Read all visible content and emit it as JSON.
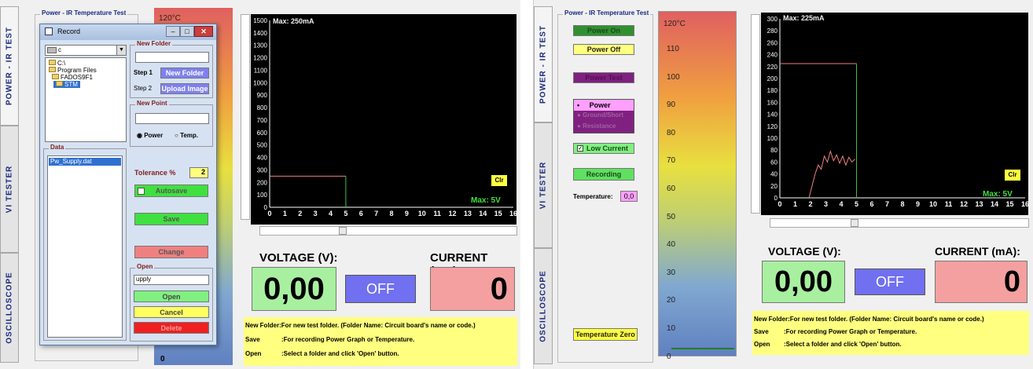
{
  "left": {
    "tabs": [
      "POWER - IR TEST",
      "VI TESTER",
      "OSCILLOSCOPE"
    ],
    "group_title": "Power - IR Temperature Test",
    "temp_top": "120°C",
    "bottom_value": "0",
    "plot": {
      "max_label": "Max: 250mA",
      "y_ticks": [
        "1500",
        "1400",
        "1300",
        "1200",
        "1100",
        "1000",
        "900",
        "800",
        "700",
        "600",
        "500",
        "400",
        "300",
        "200",
        "100",
        "0"
      ],
      "x_ticks": [
        "0",
        "1",
        "2",
        "3",
        "4",
        "5",
        "6",
        "7",
        "8",
        "9",
        "10",
        "11",
        "12",
        "13",
        "14",
        "15",
        "16"
      ],
      "clr": "Clr",
      "max_v": "Max: 5V",
      "colors": {
        "line": "#f08080",
        "marker": "#40c040"
      }
    },
    "voltage_label": "VOLTAGE (V):",
    "current_label": "CURRENT (mA):",
    "voltage_value": "0,00",
    "current_value": "0",
    "off_label": "OFF",
    "info": [
      {
        "key": "New Folder",
        "text": ":For new test folder.  (Folder Name: Circuit board's name or code.)"
      },
      {
        "key": "Save",
        "text": ":For recording Power Graph or Temperature."
      },
      {
        "key": "Open",
        "text": ":Select a folder and click 'Open' button."
      }
    ],
    "dialog": {
      "title": "Record",
      "drive": "c",
      "tree": [
        "C:\\",
        "Program Files",
        "FADOS9F1",
        "STM"
      ],
      "new_folder_title": "New Folder",
      "step1": "Step 1",
      "step2": "Step 2",
      "new_folder_btn": "New Folder",
      "upload_btn": "Upload Image",
      "new_point_title": "New Point",
      "radio_power": "Power",
      "radio_temp": "Temp.",
      "data_title": "Data",
      "data_item": "Pw_Supply.dat",
      "tolerance_label": "Tolerance %",
      "tolerance_value": "2",
      "autosave": "Autosave",
      "save": "Save",
      "change": "Change",
      "open_title": "Open",
      "open_value": "upply",
      "open_btn": "Open",
      "cancel_btn": "Cancel",
      "delete_btn": "Delete"
    }
  },
  "right": {
    "tabs": [
      "POWER - IR TEST",
      "VI TESTER",
      "OSCILLOSCOPE"
    ],
    "group_title": "Power - IR Temperature Test",
    "buttons": {
      "power_on": "Power On",
      "power_off": "Power Off",
      "power_test": "Power Test",
      "power_radio": "Power",
      "ground_radio": "Ground/Short",
      "resistance_radio": "Resistance",
      "low_current": "Low Current",
      "recording": "Recording",
      "temperature_label": "Temperature:",
      "temperature_value": "0,0",
      "temperature_zero": "Temperature Zero"
    },
    "scale": {
      "top": "120°C",
      "ticks": [
        "110",
        "100",
        "90",
        "80",
        "70",
        "60",
        "50",
        "40",
        "30",
        "20",
        "10",
        "0"
      ]
    },
    "plot": {
      "max_label": "Max: 225mA",
      "y_ticks": [
        "300",
        "280",
        "260",
        "240",
        "220",
        "200",
        "180",
        "160",
        "140",
        "120",
        "100",
        "80",
        "60",
        "40",
        "20",
        "0"
      ],
      "x_ticks": [
        "0",
        "1",
        "2",
        "3",
        "4",
        "5",
        "6",
        "7",
        "8",
        "9",
        "10",
        "11",
        "12",
        "13",
        "14",
        "15",
        "16"
      ],
      "clr": "Clr",
      "max_v": "Max: 5V"
    },
    "voltage_label": "VOLTAGE (V):",
    "current_label": "CURRENT (mA):",
    "voltage_value": "0,00",
    "current_value": "0",
    "off_label": "OFF",
    "info": [
      {
        "key": "New Folder",
        "text": ":For new test folder.  (Folder Name: Circuit board's name or code.)"
      },
      {
        "key": "Save",
        "text": ":For recording Power Graph or Temperature."
      },
      {
        "key": "Open",
        "text": ":Select a folder and click 'Open' button."
      }
    ]
  }
}
